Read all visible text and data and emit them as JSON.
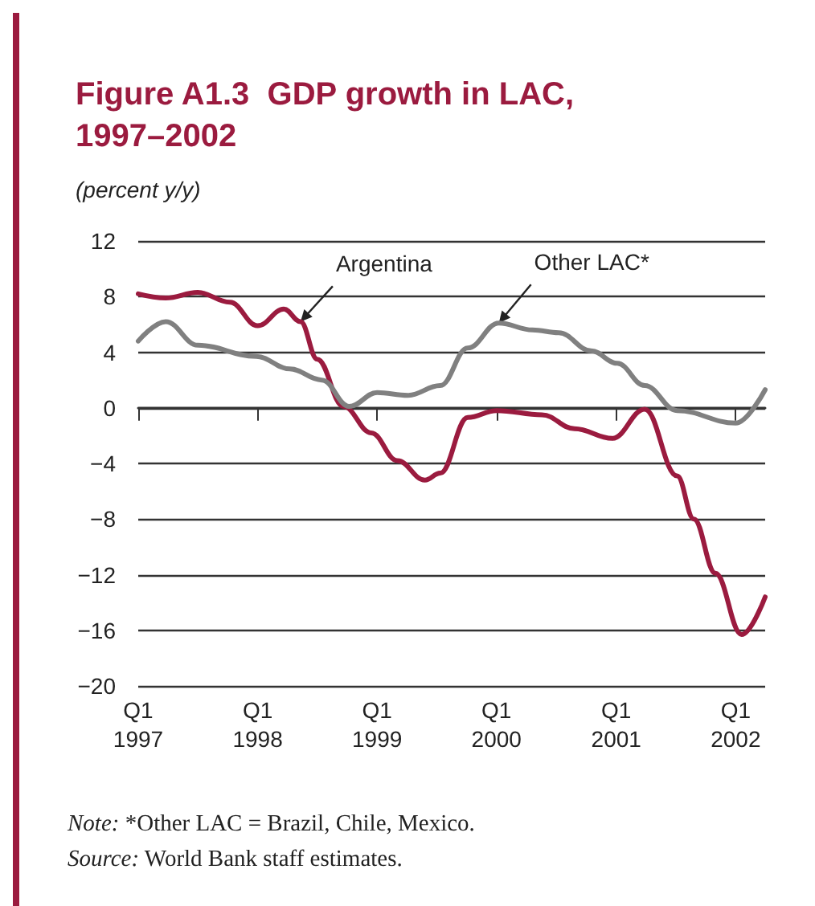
{
  "chart_data": {
    "type": "line",
    "title": "Figure A1.3  GDP growth in LAC,\n1997–2002",
    "subtitle": "(percent y/y)",
    "annotations": [
      "Note: *Other LAC = Brazil, Chile, Mexico.",
      "Source: World Bank staff estimates."
    ],
    "series": [
      {
        "name": "Argentina",
        "color": "#9b1b3f",
        "x": [
          "1997-01-01",
          "1997-03-26",
          "1997-07-02",
          "1997-10-08",
          "1998-01-01",
          "1998-03-22",
          "1998-05-12",
          "1998-07-02",
          "1998-09-20",
          "1998-12-14",
          "1999-03-04",
          "1999-05-27",
          "1999-07-13",
          "1999-10-05",
          "2000-01-01",
          "2000-05-19",
          "2000-08-26",
          "2000-12-20",
          "2001-03-29",
          "2001-07-06",
          "2001-08-26",
          "2001-10-31",
          "2002-01-19",
          "2002-04-01"
        ],
        "values": [
          8.2,
          7.9,
          8.3,
          7.6,
          5.9,
          7.1,
          6.2,
          3.5,
          0.1,
          -1.8,
          -3.8,
          -5.2,
          -4.7,
          -0.7,
          -0.2,
          -0.5,
          -1.5,
          -2.2,
          -0.1,
          -4.9,
          -8.0,
          -11.9,
          -16.3,
          -13.6
        ]
      },
      {
        "name": "Other LAC*",
        "color": "#808080",
        "x": [
          "1997-01-01",
          "1997-03-26",
          "1997-07-02",
          "1997-12-28",
          "1998-04-09",
          "1998-07-16",
          "1998-10-08",
          "1999-01-01",
          "1999-04-05",
          "1999-07-13",
          "1999-10-05",
          "2000-01-08",
          "2000-04-20",
          "2000-07-09",
          "2000-10-16",
          "2001-01-04",
          "2001-03-29",
          "2001-07-06",
          "2002-01-01",
          "2002-04-01"
        ],
        "values": [
          4.8,
          6.2,
          4.5,
          3.7,
          2.8,
          2.0,
          0.1,
          1.1,
          0.9,
          1.6,
          4.3,
          6.1,
          5.6,
          5.4,
          4.1,
          3.2,
          1.6,
          -0.2,
          -1.1,
          1.3
        ]
      }
    ],
    "xlim": [
      "1997-01-01",
      "2002-04-01"
    ],
    "xticks": [
      {
        "value": "1997-01-01",
        "label": "Q1\n1997"
      },
      {
        "value": "1998-01-01",
        "label": "Q1\n1998"
      },
      {
        "value": "1999-01-01",
        "label": "Q1\n1999"
      },
      {
        "value": "2000-01-01",
        "label": "Q1\n2000"
      },
      {
        "value": "2001-01-01",
        "label": "Q1\n2001"
      },
      {
        "value": "2002-01-01",
        "label": "Q1\n2002"
      }
    ],
    "ylim": [
      -20,
      12
    ],
    "yticks": [
      -20,
      -16,
      -12,
      -8,
      -4,
      0,
      4,
      8,
      12
    ],
    "grid": "y",
    "legend": false,
    "marker": "none",
    "line_style": "solid"
  }
}
